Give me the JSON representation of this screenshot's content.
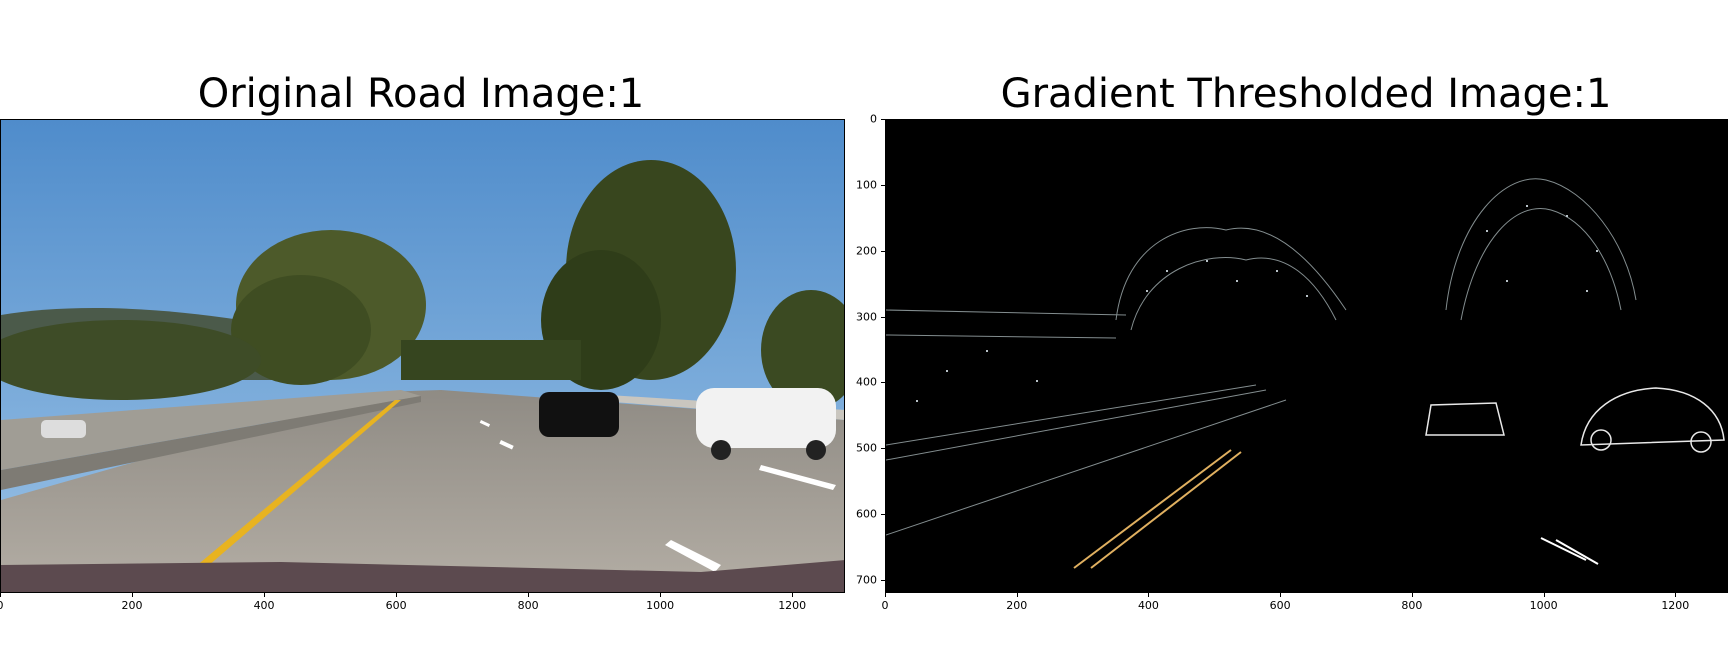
{
  "panels": [
    {
      "title": "Original Road Image:1"
    },
    {
      "title": "Gradient Thresholded Image:1"
    }
  ],
  "axes": {
    "x_ticks": [
      "0",
      "200",
      "400",
      "600",
      "800",
      "1000",
      "1200"
    ],
    "x_tick_values": [
      0,
      200,
      400,
      600,
      800,
      1000,
      1200
    ],
    "y_ticks": [
      "0",
      "100",
      "200",
      "300",
      "400",
      "500",
      "600",
      "700"
    ],
    "y_tick_values": [
      0,
      100,
      200,
      300,
      400,
      500,
      600,
      700
    ],
    "x_range": [
      0,
      1280
    ],
    "y_range": [
      0,
      720
    ]
  },
  "colors": {
    "sky": "#5b97cf",
    "road": "#a8a39a",
    "lane_yellow": "#e8b320",
    "tree": "#3c4a22",
    "barrier": "#9c9a92",
    "threshold_bg": "#000000"
  }
}
